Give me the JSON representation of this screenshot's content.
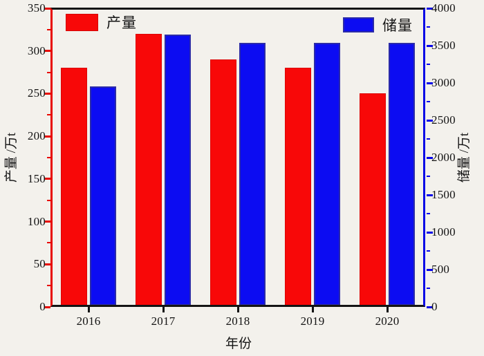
{
  "chart_data": {
    "type": "bar",
    "title": "",
    "categories": [
      "2016",
      "2017",
      "2018",
      "2019",
      "2020"
    ],
    "series": [
      {
        "name": "产量",
        "axis": "left",
        "color": "#f80808",
        "values": [
          280,
          320,
          290,
          280,
          250
        ]
      },
      {
        "name": "储量",
        "axis": "right",
        "color": "#0c0cf2",
        "values": [
          2950,
          3650,
          3540,
          3540,
          3540
        ]
      }
    ],
    "xlabel": "年份",
    "ylabel_left": "产量 /万t",
    "ylabel_right": "储量 /万t",
    "y_left": {
      "min": 0,
      "max": 350,
      "major": 50,
      "minor": 25
    },
    "y_right": {
      "min": 0,
      "max": 4000,
      "major": 500,
      "minor": 250
    },
    "grid": false,
    "legend_position": "top-inside",
    "left_axis_color": "#e80600",
    "right_axis_color": "#0806e6",
    "bar_border_blue": "#2b2ba8"
  },
  "legend": {
    "production_label": "产量",
    "reserves_label": "储量"
  },
  "axes": {
    "xlabel": "年份",
    "ylabel_left": "产量 /万t",
    "ylabel_right": "储量 /万t"
  }
}
